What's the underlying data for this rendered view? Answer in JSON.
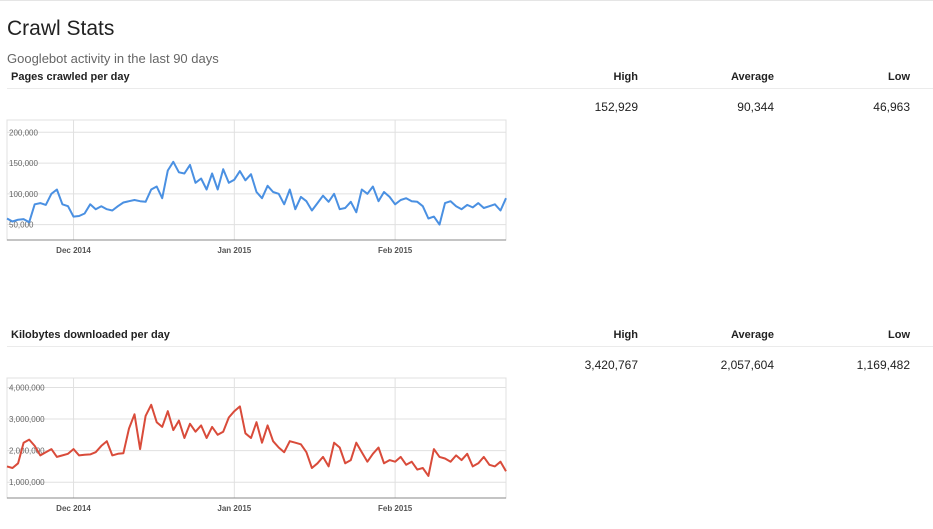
{
  "header": {
    "title": "Crawl Stats",
    "subtitle": "Googlebot activity in the last 90 days"
  },
  "columns": {
    "high": "High",
    "average": "Average",
    "low": "Low"
  },
  "sections": [
    {
      "label": "Pages crawled per day",
      "high": "152,929",
      "average": "90,344",
      "low": "46,963"
    },
    {
      "label": "Kilobytes downloaded per day",
      "high": "3,420,767",
      "average": "2,057,604",
      "low": "1,169,482"
    }
  ],
  "colors": {
    "pages": "#4a90e2",
    "kilobytes": "#d94b3a",
    "grid": "#e0e0e0",
    "axis": "#888888"
  },
  "chart_data": [
    {
      "type": "line",
      "ylim": [
        25000,
        220000
      ],
      "yticks": [
        50000,
        100000,
        150000,
        200000
      ],
      "ytick_labels": [
        "50,000",
        "100,000",
        "150,000",
        "200,000"
      ],
      "xtick_labels": [
        "Dec 2014",
        "Jan 2015",
        "Feb 2015"
      ],
      "xtick_index": [
        12,
        41,
        70
      ],
      "series": [
        {
          "values": [
            60000,
            55000,
            58000,
            59000,
            54000,
            83000,
            85000,
            82000,
            100000,
            107000,
            83000,
            80000,
            63000,
            64000,
            68000,
            83000,
            75000,
            80000,
            75000,
            73000,
            80000,
            86000,
            88000,
            90000,
            88000,
            87000,
            107000,
            112000,
            93000,
            138000,
            152000,
            135000,
            133000,
            147000,
            118000,
            125000,
            107000,
            133000,
            107000,
            140000,
            118000,
            123000,
            137000,
            122000,
            132000,
            103000,
            93000,
            113000,
            103000,
            100000,
            83000,
            107000,
            75000,
            95000,
            88000,
            73000,
            85000,
            97000,
            87000,
            100000,
            75000,
            77000,
            87000,
            70000,
            107000,
            100000,
            112000,
            88000,
            103000,
            95000,
            83000,
            90000,
            93000,
            88000,
            87000,
            80000,
            60000,
            63000,
            50000,
            85000,
            88000,
            80000,
            75000,
            82000,
            78000,
            85000,
            77000,
            80000,
            83000,
            73000,
            93000
          ]
        }
      ]
    },
    {
      "type": "line",
      "ylim": [
        500000,
        4300000
      ],
      "yticks": [
        1000000,
        2000000,
        3000000,
        4000000
      ],
      "ytick_labels": [
        "1,000,000",
        "2,000,000",
        "3,000,000",
        "4,000,000"
      ],
      "xtick_labels": [
        "Dec 2014",
        "Jan 2015",
        "Feb 2015"
      ],
      "xtick_index": [
        12,
        41,
        70
      ],
      "series": [
        {
          "values": [
            1500000,
            1450000,
            1600000,
            2250000,
            2350000,
            2150000,
            1850000,
            1950000,
            2050000,
            1800000,
            1850000,
            1900000,
            2050000,
            1850000,
            1870000,
            1880000,
            1950000,
            2150000,
            2300000,
            1850000,
            1900000,
            1920000,
            2700000,
            3150000,
            2050000,
            3100000,
            3450000,
            2900000,
            2750000,
            3250000,
            2650000,
            2950000,
            2400000,
            2850000,
            2600000,
            2800000,
            2400000,
            2750000,
            2500000,
            2600000,
            3050000,
            3250000,
            3400000,
            2550000,
            2400000,
            2900000,
            2250000,
            2800000,
            2300000,
            2100000,
            1950000,
            2300000,
            2250000,
            2200000,
            1950000,
            1450000,
            1600000,
            1800000,
            1500000,
            2250000,
            2100000,
            1600000,
            1700000,
            2250000,
            1950000,
            1650000,
            1900000,
            2100000,
            1600000,
            1700000,
            1650000,
            1800000,
            1550000,
            1650000,
            1400000,
            1450000,
            1200000,
            2050000,
            1800000,
            1750000,
            1650000,
            1850000,
            1700000,
            1900000,
            1500000,
            1600000,
            1800000,
            1550000,
            1500000,
            1650000,
            1350000
          ]
        }
      ]
    }
  ]
}
